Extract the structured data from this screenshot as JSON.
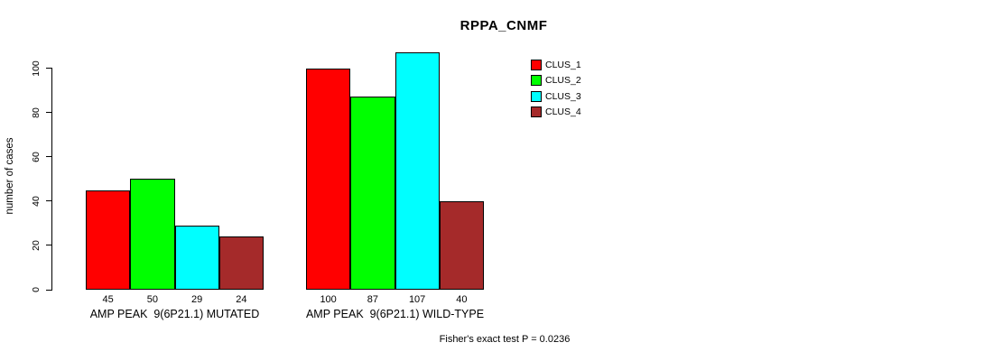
{
  "chart_data": {
    "type": "bar",
    "title": "RPPA_CNMF",
    "ylabel": "number of cases",
    "ylim": [
      0,
      100
    ],
    "yticks": [
      0,
      20,
      40,
      60,
      80,
      100
    ],
    "grid": false,
    "legend_position": "top-right",
    "categories": [
      "AMP PEAK  9(6P21.1) MUTATED",
      "AMP PEAK  9(6P21.1) WILD-TYPE"
    ],
    "series": [
      {
        "name": "CLUS_1",
        "color": "#FF0000",
        "values": [
          45,
          100
        ]
      },
      {
        "name": "CLUS_2",
        "color": "#00FF00",
        "values": [
          50,
          87
        ]
      },
      {
        "name": "CLUS_3",
        "color": "#00FFFF",
        "values": [
          29,
          107
        ]
      },
      {
        "name": "CLUS_4",
        "color": "#A52A2A",
        "values": [
          24,
          40
        ]
      }
    ],
    "bar_value_labels": [
      [
        45,
        50,
        29,
        24
      ],
      [
        100,
        87,
        107,
        40
      ]
    ],
    "annotation": "Fisher's exact test P = 0.0236"
  },
  "colors": {
    "background": "#FFFFFF",
    "axis": "#000000",
    "text": "#000000"
  }
}
